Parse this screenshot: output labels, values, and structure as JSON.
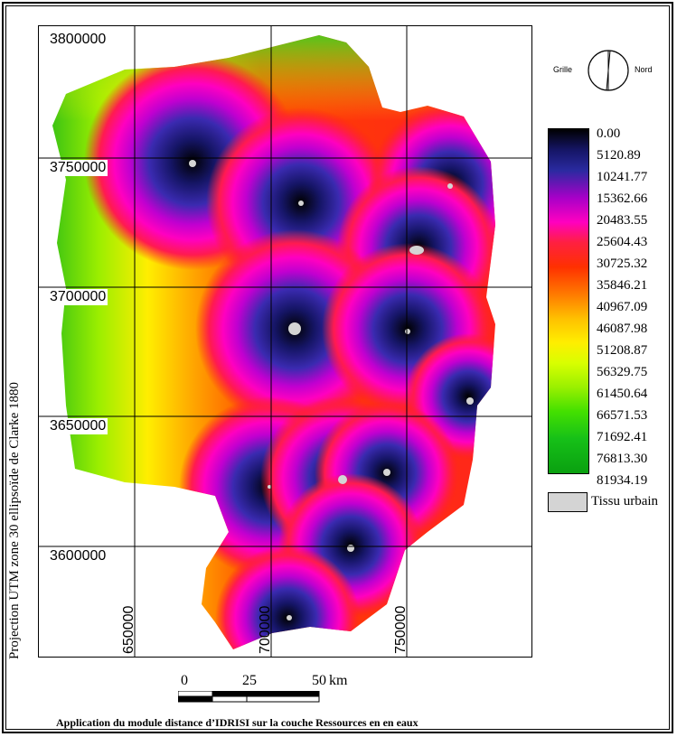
{
  "map": {
    "y_ticks": [
      "3800000",
      "3750000",
      "3700000",
      "3650000",
      "3600000"
    ],
    "x_ticks": [
      "650000",
      "700000",
      "750000"
    ],
    "projection_label": "Projection UTM zone 30 ellipsoïde de Clarke 1880"
  },
  "compass": {
    "left_label": "Grille",
    "right_label": "Nord"
  },
  "legend": {
    "values": [
      "0.00",
      "5120.89",
      "10241.77",
      "15362.66",
      "20483.55",
      "25604.43",
      "30725.32",
      "35846.21",
      "40967.09",
      "46087.98",
      "51208.87",
      "56329.75",
      "61450.64",
      "66571.53",
      "71692.41",
      "76813.30",
      "81934.19"
    ],
    "colors": [
      "#000000",
      "#151565",
      "#2a2aa0",
      "#a800c8",
      "#ff00c0",
      "#ff2040",
      "#ff3000",
      "#ff7a00",
      "#ffc000",
      "#ffee00",
      "#d8ff00",
      "#9af000",
      "#44e000",
      "#16c018",
      "#0aa010"
    ],
    "urban_label": "Tissu urbain"
  },
  "scale": {
    "labels": [
      "0",
      "25",
      "50"
    ],
    "unit": "km"
  },
  "caption": "Application du module distance d’IDRISI sur la couche Ressources en en eaux"
}
